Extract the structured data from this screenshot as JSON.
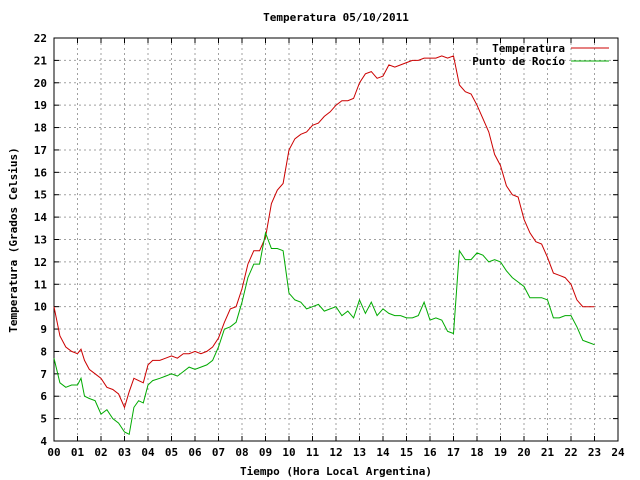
{
  "chart_data": {
    "type": "line",
    "title": "Temperatura 05/10/2011",
    "xlabel": "Tiempo (Hora Local Argentina)",
    "ylabel": "Temperatura (Grados Celsius)",
    "xlim": [
      0,
      24
    ],
    "ylim": [
      4,
      22
    ],
    "grid": true,
    "legend_position": "top-right",
    "x_ticks": [
      "00",
      "01",
      "02",
      "03",
      "04",
      "05",
      "06",
      "07",
      "08",
      "09",
      "10",
      "11",
      "12",
      "13",
      "14",
      "15",
      "16",
      "17",
      "18",
      "19",
      "20",
      "21",
      "22",
      "23",
      "24"
    ],
    "y_ticks": [
      "4",
      "5",
      "6",
      "7",
      "8",
      "9",
      "10",
      "11",
      "12",
      "13",
      "14",
      "15",
      "16",
      "17",
      "18",
      "19",
      "20",
      "21",
      "22"
    ],
    "series": [
      {
        "name": "Temperatura",
        "color": "#cc0000",
        "x": [
          0.0,
          0.25,
          0.5,
          0.75,
          1.0,
          1.15,
          1.3,
          1.5,
          1.75,
          2.0,
          2.25,
          2.5,
          2.75,
          3.0,
          3.2,
          3.4,
          3.6,
          3.8,
          4.0,
          4.2,
          4.5,
          4.75,
          5.0,
          5.25,
          5.5,
          5.75,
          6.0,
          6.25,
          6.5,
          6.75,
          7.0,
          7.25,
          7.5,
          7.75,
          8.0,
          8.25,
          8.5,
          8.75,
          9.0,
          9.25,
          9.5,
          9.75,
          10.0,
          10.25,
          10.5,
          10.75,
          11.0,
          11.25,
          11.5,
          11.75,
          12.0,
          12.25,
          12.5,
          12.75,
          13.0,
          13.25,
          13.5,
          13.75,
          14.0,
          14.25,
          14.5,
          14.75,
          15.0,
          15.25,
          15.5,
          15.75,
          16.0,
          16.25,
          16.5,
          16.75,
          17.0,
          17.25,
          17.5,
          17.75,
          18.0,
          18.25,
          18.5,
          18.75,
          19.0,
          19.25,
          19.5,
          19.75,
          20.0,
          20.25,
          20.5,
          20.75,
          21.0,
          21.25,
          21.5,
          21.75,
          22.0,
          22.25,
          22.5,
          22.75,
          23.0
        ],
        "values": [
          10.0,
          8.7,
          8.2,
          8.0,
          7.9,
          8.1,
          7.6,
          7.2,
          7.0,
          6.8,
          6.4,
          6.3,
          6.1,
          5.5,
          6.2,
          6.8,
          6.7,
          6.6,
          7.4,
          7.6,
          7.6,
          7.7,
          7.8,
          7.7,
          7.9,
          7.9,
          8.0,
          7.9,
          8.0,
          8.2,
          8.6,
          9.3,
          9.9,
          10.0,
          10.8,
          11.9,
          12.5,
          12.5,
          13.1,
          14.6,
          15.2,
          15.5,
          17.0,
          17.5,
          17.7,
          17.8,
          18.1,
          18.2,
          18.5,
          18.7,
          19.0,
          19.2,
          19.2,
          19.3,
          20.0,
          20.4,
          20.5,
          20.2,
          20.3,
          20.8,
          20.7,
          20.8,
          20.9,
          21.0,
          21.0,
          21.1,
          21.1,
          21.1,
          21.2,
          21.1,
          21.2,
          19.9,
          19.6,
          19.5,
          19.0,
          18.4,
          17.8,
          16.8,
          16.3,
          15.4,
          15.0,
          14.9,
          13.9,
          13.3,
          12.9,
          12.8,
          12.2,
          11.5,
          11.4,
          11.3,
          11.0,
          10.3,
          10.0,
          10.0,
          10.0
        ]
      },
      {
        "name": "Punto de Rocío",
        "color": "#00aa00",
        "x": [
          0.0,
          0.25,
          0.5,
          0.75,
          1.0,
          1.15,
          1.3,
          1.5,
          1.75,
          2.0,
          2.25,
          2.5,
          2.75,
          3.0,
          3.2,
          3.4,
          3.6,
          3.8,
          4.0,
          4.2,
          4.5,
          4.75,
          5.0,
          5.25,
          5.5,
          5.75,
          6.0,
          6.25,
          6.5,
          6.75,
          7.0,
          7.25,
          7.5,
          7.75,
          8.0,
          8.25,
          8.5,
          8.75,
          9.0,
          9.25,
          9.5,
          9.75,
          10.0,
          10.25,
          10.5,
          10.75,
          11.0,
          11.25,
          11.5,
          11.75,
          12.0,
          12.25,
          12.5,
          12.75,
          13.0,
          13.25,
          13.5,
          13.75,
          14.0,
          14.25,
          14.5,
          14.75,
          15.0,
          15.25,
          15.5,
          15.75,
          16.0,
          16.25,
          16.5,
          16.75,
          17.0,
          17.25,
          17.5,
          17.75,
          18.0,
          18.25,
          18.5,
          18.75,
          19.0,
          19.25,
          19.5,
          19.75,
          20.0,
          20.25,
          20.5,
          20.75,
          21.0,
          21.25,
          21.5,
          21.75,
          22.0,
          22.25,
          22.5,
          22.75,
          23.0
        ],
        "values": [
          7.7,
          6.6,
          6.4,
          6.5,
          6.5,
          6.8,
          6.0,
          5.9,
          5.8,
          5.2,
          5.4,
          5.0,
          4.8,
          4.4,
          4.3,
          5.5,
          5.8,
          5.7,
          6.5,
          6.7,
          6.8,
          6.9,
          7.0,
          6.9,
          7.1,
          7.3,
          7.2,
          7.3,
          7.4,
          7.6,
          8.2,
          9.0,
          9.1,
          9.3,
          10.2,
          11.3,
          11.9,
          11.9,
          13.3,
          12.6,
          12.6,
          12.5,
          10.6,
          10.3,
          10.2,
          9.9,
          10.0,
          10.1,
          9.8,
          9.9,
          10.0,
          9.6,
          9.8,
          9.5,
          10.3,
          9.7,
          10.2,
          9.6,
          9.9,
          9.7,
          9.6,
          9.6,
          9.5,
          9.5,
          9.6,
          10.2,
          9.4,
          9.5,
          9.4,
          8.9,
          8.8,
          12.5,
          12.1,
          12.1,
          12.4,
          12.3,
          12.0,
          12.1,
          12.0,
          11.6,
          11.3,
          11.1,
          10.9,
          10.4,
          10.4,
          10.4,
          10.3,
          9.5,
          9.5,
          9.6,
          9.6,
          9.1,
          8.5,
          8.4,
          8.3
        ]
      }
    ]
  }
}
